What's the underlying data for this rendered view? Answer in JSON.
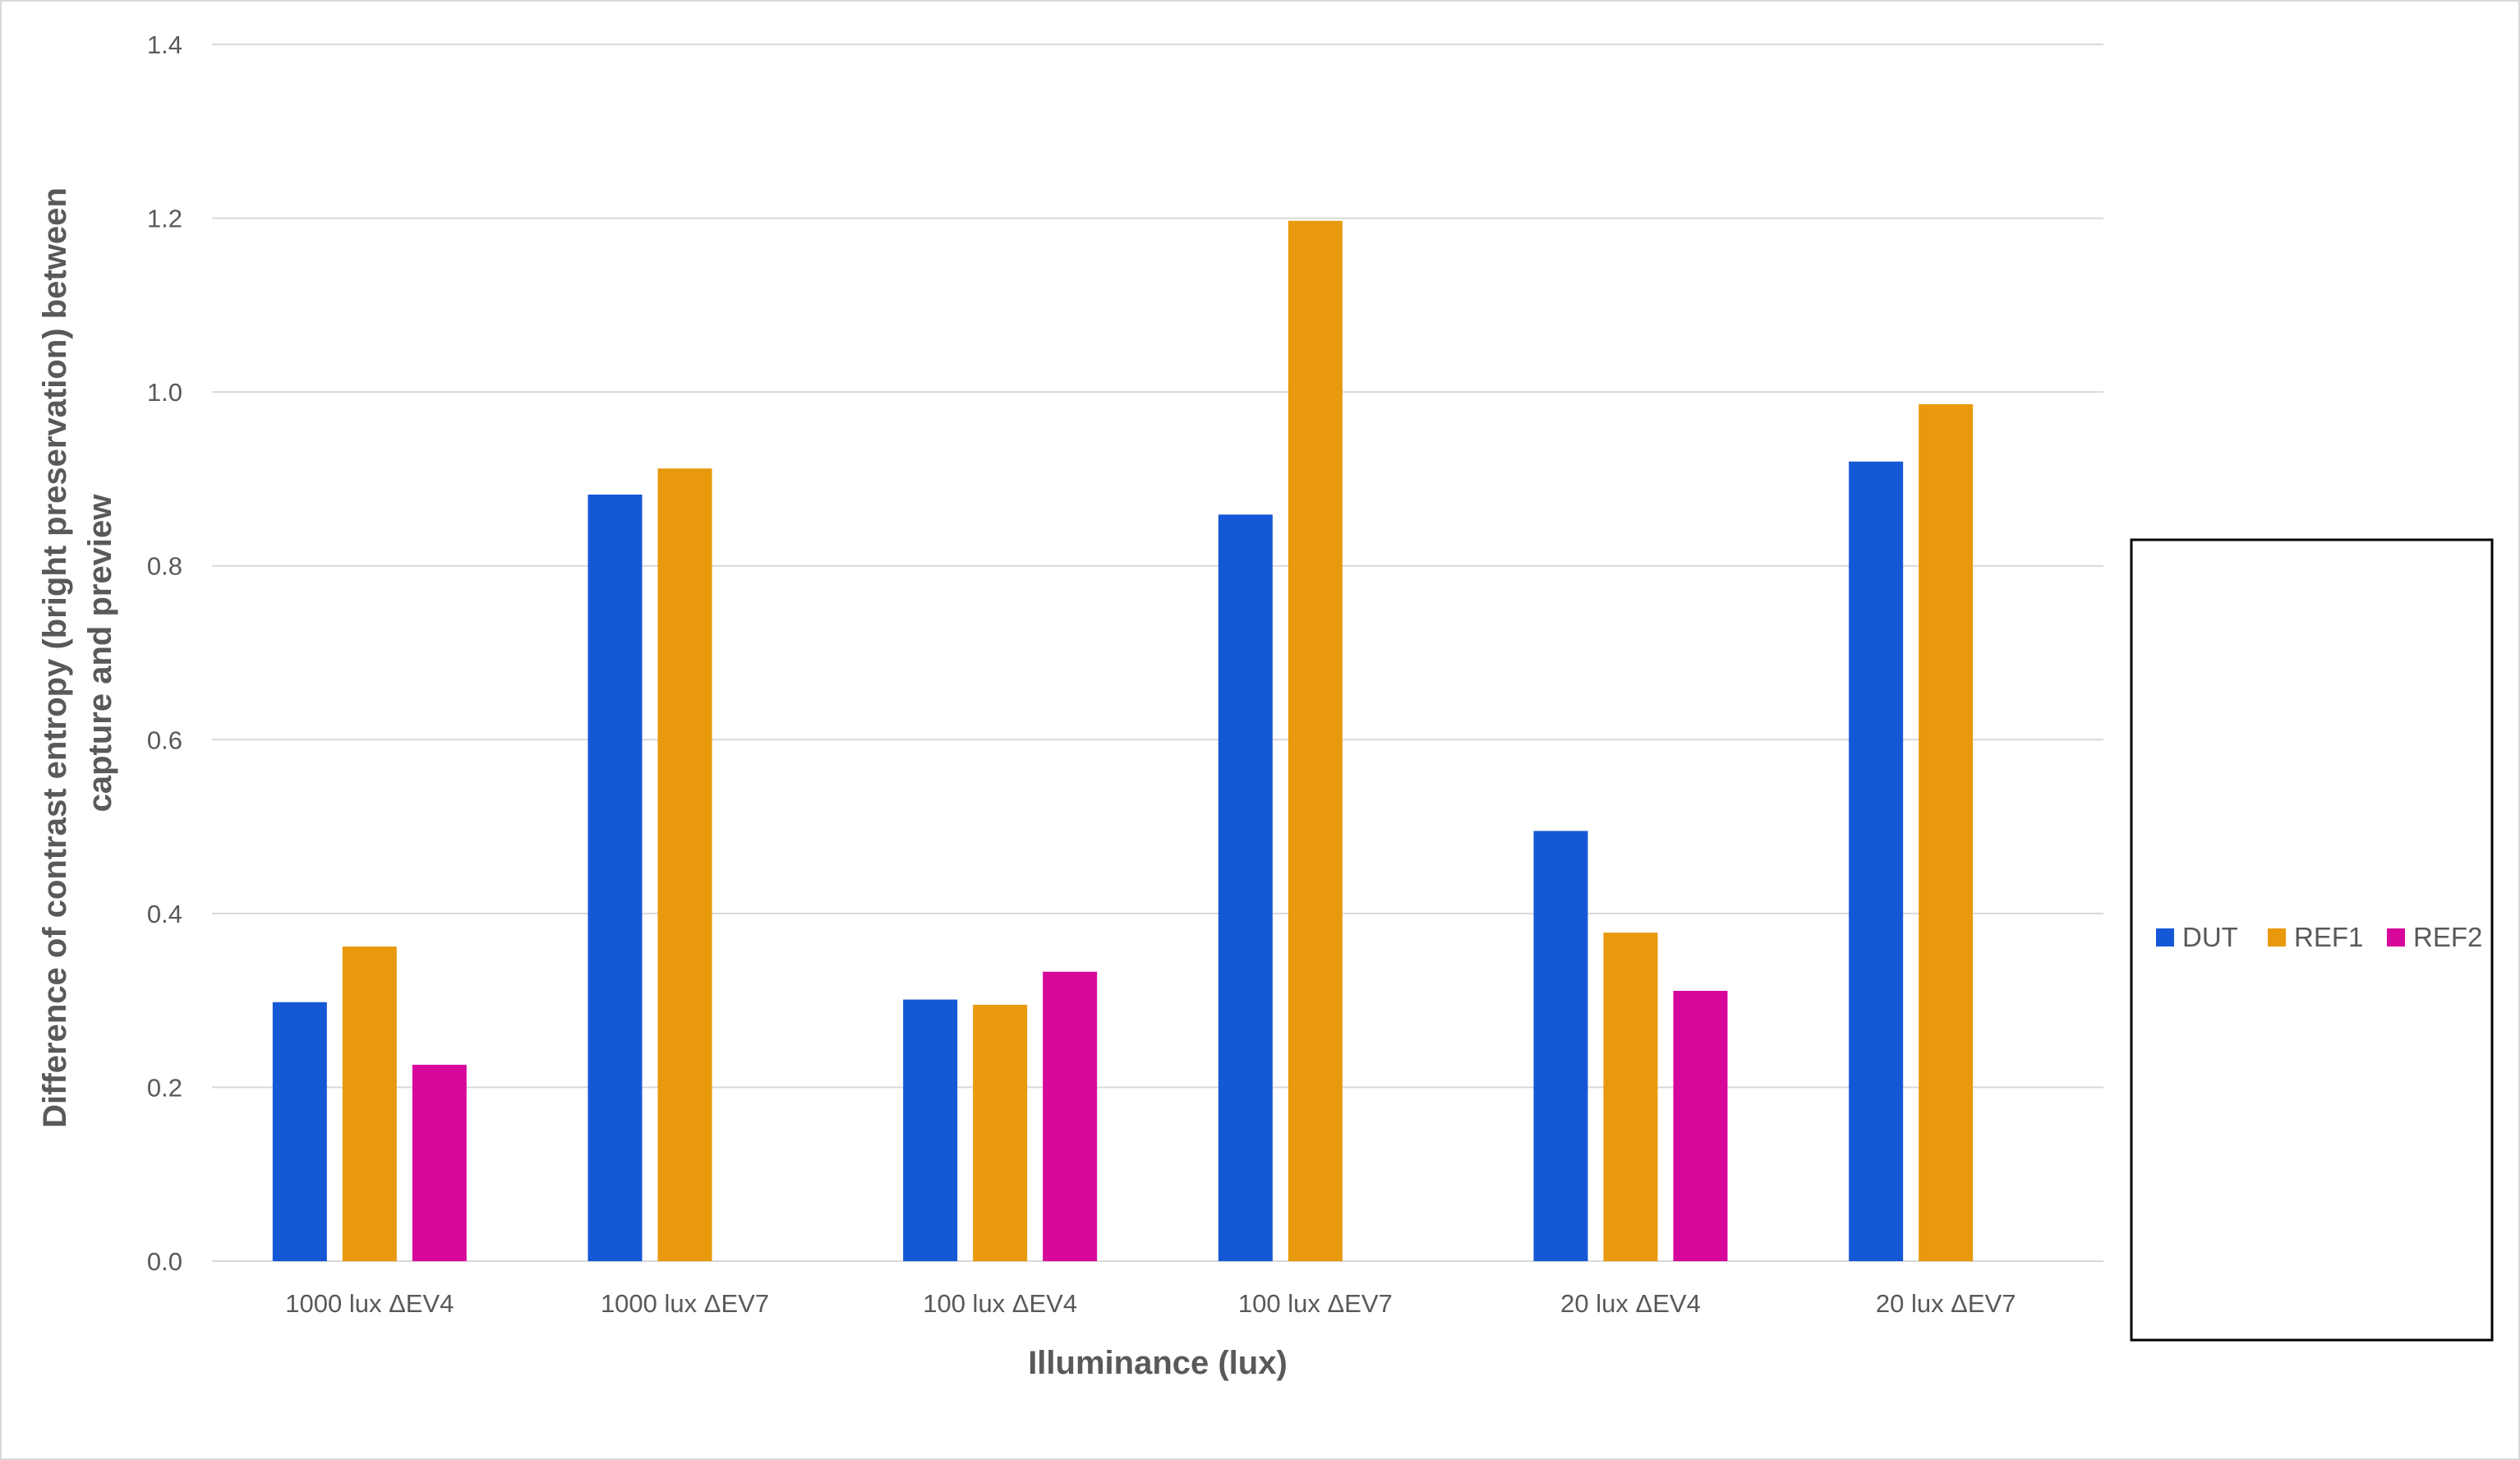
{
  "chart_data": {
    "type": "bar",
    "title": "",
    "xlabel": "Illuminance (lux)",
    "ylabel_lines": [
      "Difference of contrast entropy (bright preservation)  between",
      "capture and preview"
    ],
    "ylim": [
      0,
      1.4
    ],
    "ytick_step": 0.2,
    "ytick_labels": [
      "0.0",
      "0.2",
      "0.4",
      "0.6",
      "0.8",
      "1.0",
      "1.2",
      "1.4"
    ],
    "grid": true,
    "legend_position": "right",
    "categories": [
      "1000 lux ΔEV4",
      "1000 lux ΔEV7",
      "100 lux ΔEV4",
      "100 lux ΔEV7",
      "20 lux ΔEV4",
      "20 lux ΔEV7"
    ],
    "series": [
      {
        "name": "DUT",
        "color": "#1558d6",
        "values": [
          0.298,
          0.882,
          0.301,
          0.859,
          0.495,
          0.92
        ]
      },
      {
        "name": "REF1",
        "color": "#e8990c",
        "values": [
          0.362,
          0.912,
          0.295,
          1.197,
          0.378,
          0.986
        ]
      },
      {
        "name": "REF2",
        "color": "#d8079b",
        "values": [
          0.226,
          null,
          0.333,
          null,
          0.311,
          null
        ]
      }
    ]
  }
}
